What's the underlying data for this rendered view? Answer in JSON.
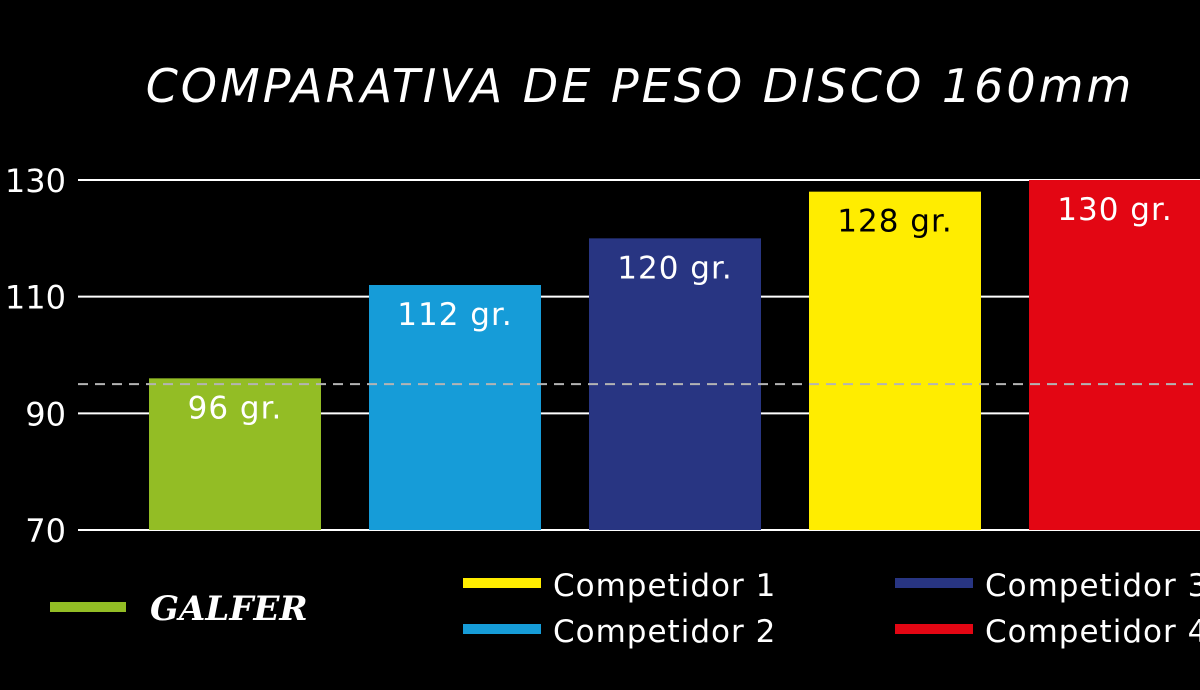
{
  "chart_data": {
    "type": "bar",
    "title": "COMPARATIVA DE PESO DISCO 160mm",
    "categories": [
      "GALFER",
      "Competidor 2",
      "Competidor 3",
      "Competidor 1",
      "Competidor 4"
    ],
    "values": [
      96,
      112,
      120,
      128,
      130
    ],
    "labels": [
      "96 gr.",
      "112 gr.",
      "120 gr.",
      "128 gr.",
      "130 gr."
    ],
    "colors": [
      "#93bd25",
      "#169cd8",
      "#283582",
      "#ffed00",
      "#e30613"
    ],
    "label_colors": [
      "#ffffff",
      "#ffffff",
      "#ffffff",
      "#000000",
      "#ffffff"
    ],
    "yticks": [
      70,
      90,
      110,
      130
    ],
    "ylim": [
      70,
      130
    ],
    "reference_line": 95,
    "xlabel": "",
    "ylabel": "",
    "grid": true,
    "legend": [
      {
        "name": "GALFER",
        "color": "#93bd25",
        "brand": true
      },
      {
        "name": "Competidor 1",
        "color": "#ffed00"
      },
      {
        "name": "Competidor 2",
        "color": "#169cd8"
      },
      {
        "name": "Competidor 3",
        "color": "#283582"
      },
      {
        "name": "Competidor 4",
        "color": "#e30613"
      }
    ],
    "legend_position": "bottom"
  }
}
